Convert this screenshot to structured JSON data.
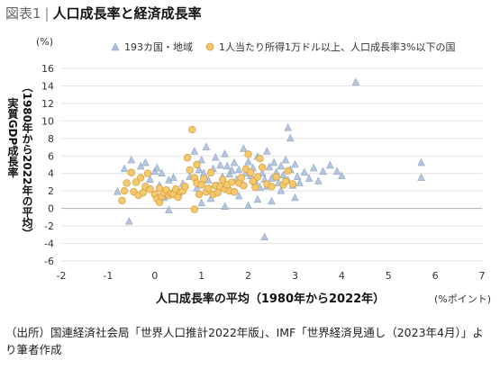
{
  "figure": {
    "number": "図表1",
    "title": "人口成長率と経済成長率"
  },
  "source_note": "（出所）国連経済社会局「世界人口推計2022年版」、IMF「世界経済見通し（2023年4月）」より筆者作成",
  "chart_data": {
    "type": "scatter",
    "xlabel": "人口成長率の平均（1980年から2022年）",
    "xunit": "(%ポイント)",
    "ylabel_main": "実質GDP成長率",
    "ylabel_sub": "（1980年から2022年の平均）",
    "yunit": "(%)",
    "xlim": [
      -2,
      7
    ],
    "ylim": [
      -6,
      16
    ],
    "x_ticks": [
      -2,
      -1,
      0,
      1,
      2,
      3,
      4,
      5,
      6,
      7
    ],
    "y_ticks": [
      -6,
      -4,
      -2,
      0,
      2,
      4,
      6,
      8,
      10,
      12,
      14,
      16
    ],
    "grid": "horizontal",
    "legend_position": "top",
    "series": [
      {
        "name": "193カ国・地域",
        "marker": "triangle",
        "color": "#a9bcd8",
        "points": [
          [
            -0.65,
            4.5
          ],
          [
            -0.5,
            5.5
          ],
          [
            -0.3,
            4.8
          ],
          [
            -0.2,
            5.2
          ],
          [
            -0.1,
            3.3
          ],
          [
            0.0,
            4.2
          ],
          [
            0.05,
            4.6
          ],
          [
            0.15,
            4.0
          ],
          [
            0.3,
            3.2
          ],
          [
            0.4,
            3.5
          ],
          [
            0.6,
            2.8
          ],
          [
            0.75,
            3.6
          ],
          [
            0.85,
            6.5
          ],
          [
            0.95,
            4.4
          ],
          [
            1.0,
            5.5
          ],
          [
            1.05,
            4.0
          ],
          [
            1.1,
            7.0
          ],
          [
            1.15,
            3.2
          ],
          [
            1.25,
            4.5
          ],
          [
            1.3,
            5.8
          ],
          [
            1.4,
            4.9
          ],
          [
            1.45,
            3.6
          ],
          [
            1.5,
            6.2
          ],
          [
            1.55,
            4.8
          ],
          [
            1.6,
            3.9
          ],
          [
            1.65,
            4.3
          ],
          [
            1.7,
            5.2
          ],
          [
            1.75,
            3.3
          ],
          [
            1.8,
            4.4
          ],
          [
            1.85,
            3.0
          ],
          [
            1.9,
            6.8
          ],
          [
            1.95,
            4.0
          ],
          [
            2.0,
            5.3
          ],
          [
            2.05,
            3.7
          ],
          [
            2.1,
            4.6
          ],
          [
            2.15,
            3.1
          ],
          [
            2.2,
            5.9
          ],
          [
            2.25,
            2.4
          ],
          [
            2.3,
            4.0
          ],
          [
            2.35,
            3.3
          ],
          [
            2.4,
            6.5
          ],
          [
            2.45,
            4.7
          ],
          [
            2.5,
            3.4
          ],
          [
            2.55,
            5.2
          ],
          [
            2.6,
            4.1
          ],
          [
            2.65,
            2.9
          ],
          [
            2.7,
            4.8
          ],
          [
            2.75,
            3.8
          ],
          [
            2.8,
            5.5
          ],
          [
            2.85,
            9.2
          ],
          [
            2.85,
            3.2
          ],
          [
            2.9,
            8.0
          ],
          [
            2.9,
            4.4
          ],
          [
            2.95,
            2.6
          ],
          [
            3.0,
            5.0
          ],
          [
            3.05,
            3.6
          ],
          [
            3.1,
            2.9
          ],
          [
            3.2,
            4.1
          ],
          [
            3.3,
            3.4
          ],
          [
            3.4,
            4.6
          ],
          [
            3.5,
            3.1
          ],
          [
            3.6,
            4.2
          ],
          [
            3.75,
            4.9
          ],
          [
            3.9,
            4.2
          ],
          [
            4.0,
            3.7
          ],
          [
            4.3,
            14.4
          ],
          [
            5.7,
            5.2
          ],
          [
            5.7,
            3.5
          ],
          [
            -0.8,
            1.9
          ],
          [
            -0.55,
            -1.5
          ],
          [
            0.2,
            1.2
          ],
          [
            0.5,
            1.8
          ],
          [
            1.0,
            0.6
          ],
          [
            1.2,
            1.1
          ],
          [
            1.5,
            0.2
          ],
          [
            1.8,
            1.4
          ],
          [
            2.0,
            0.3
          ],
          [
            2.2,
            1.0
          ],
          [
            2.35,
            -3.3
          ],
          [
            2.5,
            0.8
          ],
          [
            0.3,
            -0.2
          ],
          [
            1.6,
            2.2
          ],
          [
            2.7,
            2.0
          ],
          [
            3.0,
            1.2
          ],
          [
            0.9,
            2.3
          ],
          [
            1.35,
            2.6
          ],
          [
            2.4,
            2.5
          ],
          [
            0.1,
            2.6
          ]
        ]
      },
      {
        "name": "1人当たり所得1万ドル以上、人口成長率3%以下の国",
        "marker": "circle",
        "color": "#f3c86f",
        "points": [
          [
            -0.7,
            0.9
          ],
          [
            -0.65,
            2.0
          ],
          [
            -0.6,
            2.9
          ],
          [
            -0.5,
            4.1
          ],
          [
            -0.45,
            1.9
          ],
          [
            -0.4,
            3.0
          ],
          [
            -0.35,
            1.5
          ],
          [
            -0.3,
            3.5
          ],
          [
            -0.25,
            1.8
          ],
          [
            -0.2,
            2.5
          ],
          [
            -0.15,
            4.0
          ],
          [
            -0.1,
            2.2
          ],
          [
            0.0,
            1.6
          ],
          [
            0.05,
            1.1
          ],
          [
            0.1,
            2.3
          ],
          [
            0.1,
            0.7
          ],
          [
            0.15,
            1.4
          ],
          [
            0.2,
            1.8
          ],
          [
            0.25,
            2.1
          ],
          [
            0.3,
            1.5
          ],
          [
            0.35,
            1.7
          ],
          [
            0.4,
            1.6
          ],
          [
            0.45,
            2.2
          ],
          [
            0.5,
            1.3
          ],
          [
            0.55,
            1.9
          ],
          [
            0.6,
            2.0
          ],
          [
            0.65,
            2.5
          ],
          [
            0.7,
            5.8
          ],
          [
            0.75,
            4.4
          ],
          [
            0.8,
            9.0
          ],
          [
            0.85,
            3.5
          ],
          [
            0.85,
            -0.1
          ],
          [
            0.9,
            2.9
          ],
          [
            0.9,
            5.0
          ],
          [
            0.95,
            1.6
          ],
          [
            1.0,
            2.7
          ],
          [
            1.05,
            3.4
          ],
          [
            1.1,
            1.9
          ],
          [
            1.15,
            2.3
          ],
          [
            1.2,
            4.1
          ],
          [
            1.25,
            1.6
          ],
          [
            1.3,
            2.6
          ],
          [
            1.35,
            1.8
          ],
          [
            1.4,
            2.5
          ],
          [
            1.45,
            3.3
          ],
          [
            1.5,
            2.2
          ],
          [
            1.55,
            2.7
          ],
          [
            1.6,
            2.0
          ],
          [
            1.65,
            3.0
          ],
          [
            1.7,
            1.9
          ],
          [
            1.8,
            2.9
          ],
          [
            1.85,
            3.5
          ],
          [
            1.9,
            2.6
          ],
          [
            1.95,
            4.5
          ],
          [
            2.0,
            6.2
          ],
          [
            2.05,
            4.1
          ],
          [
            2.1,
            3.1
          ],
          [
            2.15,
            2.4
          ],
          [
            2.2,
            3.6
          ],
          [
            2.25,
            5.7
          ],
          [
            2.3,
            4.7
          ],
          [
            2.4,
            2.8
          ],
          [
            2.5,
            2.5
          ],
          [
            2.6,
            3.6
          ],
          [
            2.75,
            2.7
          ],
          [
            2.8,
            3.1
          ],
          [
            2.85,
            4.3
          ],
          [
            2.95,
            2.8
          ]
        ]
      }
    ]
  }
}
